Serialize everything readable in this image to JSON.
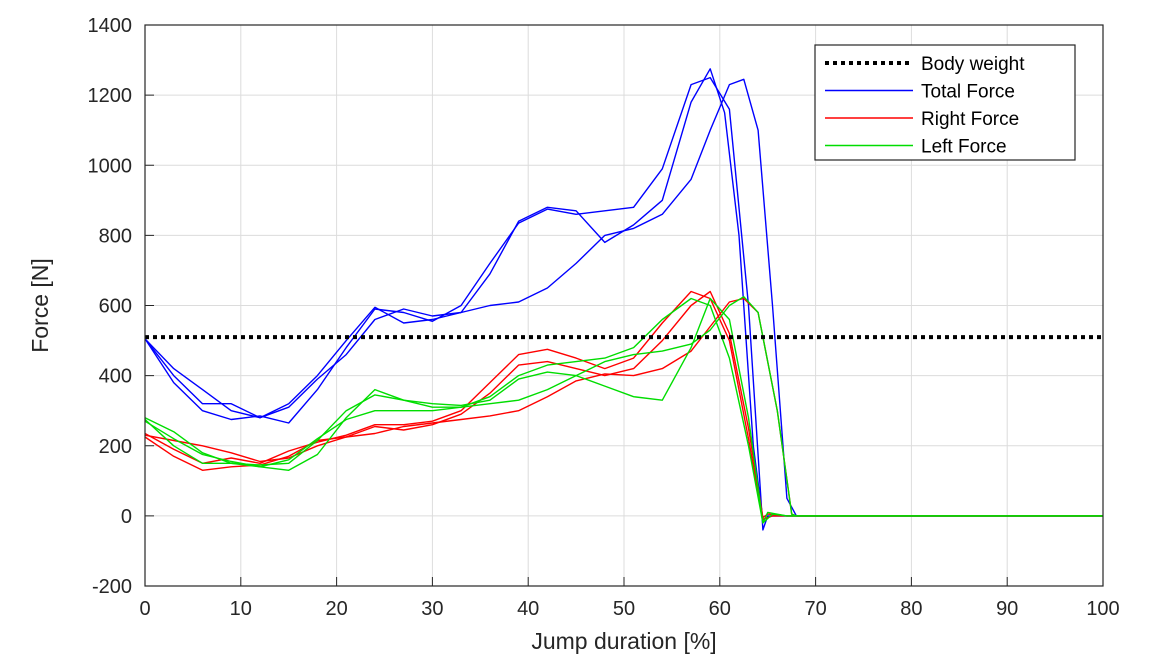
{
  "chart_data": {
    "type": "line",
    "title": "",
    "xlabel": "Jump duration [%]",
    "ylabel": "Force [N]",
    "xlim": [
      0,
      100
    ],
    "ylim": [
      -200,
      1400
    ],
    "xticks": [
      0,
      10,
      20,
      30,
      40,
      50,
      60,
      70,
      80,
      90,
      100
    ],
    "yticks": [
      -200,
      0,
      200,
      400,
      600,
      800,
      1000,
      1200,
      1400
    ],
    "grid": true,
    "legend_position": "top-right",
    "legend": [
      "Body weight",
      "Total Force",
      "Right Force",
      "Left Force"
    ],
    "colors": {
      "Body weight": "#000000",
      "Total Force": "#0000ff",
      "Right Force": "#ff0000",
      "Left Force": "#00dd00"
    },
    "series": [
      {
        "name": "Body weight",
        "group": "Body weight",
        "style": "dotted",
        "x": [
          0,
          100
        ],
        "y": [
          510,
          510
        ]
      },
      {
        "group": "Total Force",
        "x": [
          0,
          3,
          6,
          9,
          12,
          15,
          18,
          21,
          24,
          27,
          30,
          33,
          36,
          39,
          42,
          45,
          48,
          51,
          54,
          57,
          59,
          61,
          63,
          64.5,
          65,
          67,
          100
        ],
        "y": [
          505,
          380,
          300,
          275,
          285,
          265,
          360,
          480,
          590,
          580,
          555,
          600,
          720,
          835,
          875,
          860,
          870,
          880,
          990,
          1230,
          1250,
          1160,
          600,
          -40,
          0,
          0,
          0
        ]
      },
      {
        "group": "Total Force",
        "x": [
          0,
          3,
          6,
          9,
          12,
          15,
          18,
          21,
          24,
          27,
          30,
          33,
          36,
          39,
          42,
          45,
          48,
          51,
          54,
          57,
          59,
          60.5,
          62,
          63.5,
          64.5,
          65.5,
          67,
          100
        ],
        "y": [
          505,
          400,
          320,
          320,
          280,
          320,
          400,
          500,
          595,
          550,
          560,
          580,
          690,
          840,
          880,
          870,
          780,
          830,
          900,
          1180,
          1275,
          1150,
          800,
          200,
          -10,
          0,
          0,
          0
        ]
      },
      {
        "group": "Total Force",
        "x": [
          0,
          3,
          6,
          9,
          12,
          15,
          18,
          21,
          24,
          27,
          30,
          33,
          36,
          39,
          42,
          45,
          48,
          51,
          54,
          57,
          59,
          61,
          62.5,
          64,
          65.5,
          67,
          68,
          100
        ],
        "y": [
          505,
          420,
          360,
          300,
          280,
          310,
          390,
          460,
          560,
          590,
          570,
          580,
          600,
          610,
          650,
          720,
          800,
          820,
          860,
          960,
          1100,
          1230,
          1245,
          1100,
          600,
          50,
          0,
          0
        ]
      },
      {
        "group": "Right Force",
        "x": [
          0,
          3,
          6,
          9,
          12,
          15,
          18,
          21,
          24,
          27,
          30,
          33,
          36,
          39,
          42,
          45,
          48,
          51,
          54,
          57,
          59,
          61,
          63,
          64.5,
          65,
          67,
          100
        ],
        "y": [
          225,
          170,
          130,
          140,
          145,
          170,
          215,
          225,
          255,
          245,
          260,
          290,
          350,
          430,
          440,
          420,
          400,
          420,
          500,
          600,
          640,
          520,
          250,
          -5,
          5,
          0,
          0
        ]
      },
      {
        "group": "Right Force",
        "x": [
          0,
          3,
          6,
          9,
          12,
          15,
          18,
          21,
          24,
          27,
          30,
          33,
          36,
          39,
          42,
          45,
          48,
          51,
          54,
          57,
          59,
          61,
          63,
          64.5,
          65.5,
          67,
          100
        ],
        "y": [
          235,
          190,
          150,
          165,
          150,
          185,
          210,
          230,
          260,
          260,
          270,
          300,
          380,
          460,
          475,
          450,
          420,
          450,
          550,
          640,
          620,
          500,
          220,
          -10,
          0,
          0,
          0
        ]
      },
      {
        "group": "Right Force",
        "x": [
          0,
          3,
          6,
          9,
          12,
          15,
          18,
          21,
          24,
          27,
          30,
          33,
          36,
          39,
          42,
          45,
          48,
          51,
          54,
          57,
          59,
          61,
          62.5,
          64,
          66,
          67.5,
          68,
          100
        ],
        "y": [
          230,
          215,
          200,
          180,
          155,
          165,
          200,
          225,
          235,
          255,
          265,
          275,
          285,
          300,
          340,
          385,
          405,
          400,
          420,
          470,
          540,
          610,
          620,
          580,
          300,
          5,
          0,
          0
        ]
      },
      {
        "group": "Left Force",
        "x": [
          0,
          3,
          6,
          9,
          12,
          15,
          18,
          21,
          24,
          27,
          30,
          33,
          36,
          39,
          42,
          45,
          48,
          51,
          54,
          57,
          59,
          61,
          63,
          64.5,
          65,
          67,
          100
        ],
        "y": [
          275,
          200,
          150,
          150,
          145,
          150,
          215,
          300,
          345,
          330,
          310,
          310,
          340,
          400,
          430,
          440,
          450,
          480,
          560,
          620,
          600,
          450,
          200,
          -20,
          10,
          0,
          0
        ]
      },
      {
        "group": "Left Force",
        "x": [
          0,
          3,
          6,
          9,
          12,
          15,
          18,
          21,
          24,
          27,
          30,
          33,
          36,
          39,
          42,
          45,
          48,
          51,
          54,
          57,
          59,
          61,
          63,
          64.5,
          65.5,
          67,
          100
        ],
        "y": [
          270,
          220,
          175,
          155,
          140,
          130,
          175,
          280,
          360,
          330,
          320,
          315,
          330,
          390,
          410,
          400,
          370,
          340,
          330,
          480,
          620,
          560,
          280,
          -20,
          5,
          0,
          0
        ]
      },
      {
        "group": "Left Force",
        "x": [
          0,
          3,
          6,
          9,
          12,
          15,
          18,
          21,
          24,
          27,
          30,
          33,
          36,
          39,
          42,
          45,
          48,
          51,
          54,
          57,
          59,
          61,
          62.5,
          64,
          66,
          67.5,
          68,
          100
        ],
        "y": [
          280,
          240,
          180,
          150,
          140,
          160,
          220,
          275,
          300,
          300,
          300,
          310,
          320,
          330,
          360,
          400,
          440,
          460,
          470,
          490,
          530,
          600,
          625,
          580,
          300,
          5,
          0,
          0
        ]
      }
    ]
  }
}
